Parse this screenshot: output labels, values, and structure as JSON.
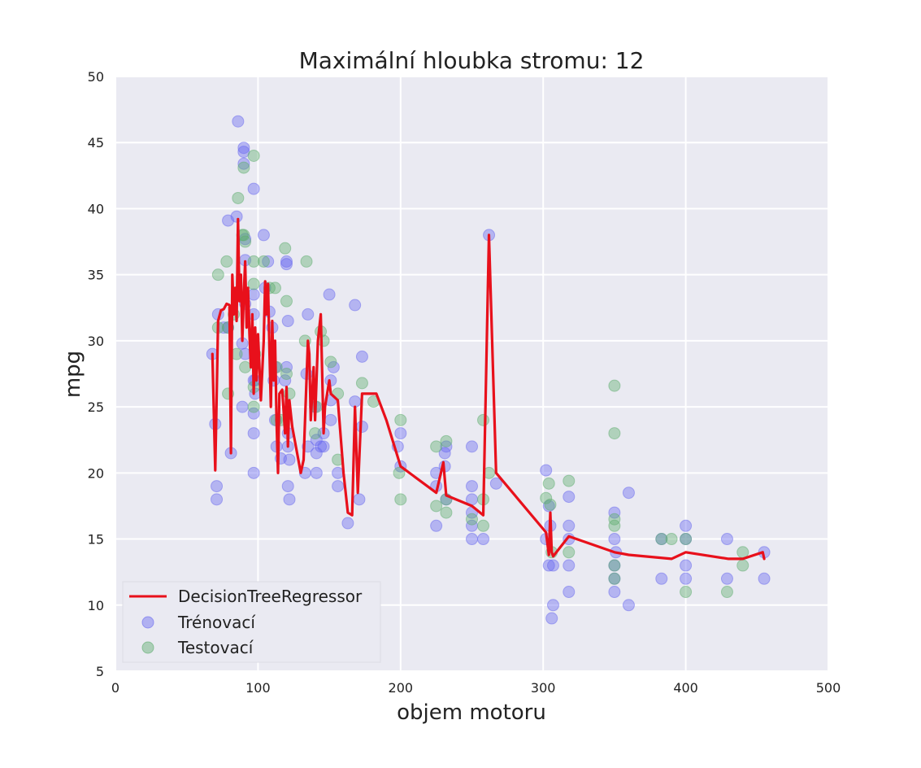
{
  "chart_data": {
    "type": "scatter",
    "title": "Maximální hloubka stromu: 12",
    "xlabel": "objem motoru",
    "ylabel": "mpg",
    "xlim": [
      0,
      500
    ],
    "ylim": [
      5,
      50
    ],
    "xticks": [
      0,
      100,
      200,
      300,
      400,
      500
    ],
    "yticks": [
      5,
      10,
      15,
      20,
      25,
      30,
      35,
      40,
      45,
      50
    ],
    "grid": true,
    "legend_position": "lower-left",
    "colors": {
      "background": "#eaeaf2",
      "grid": "#ffffff",
      "train": "#6a6af0",
      "test": "#5fae6f",
      "line": "#e8101b"
    },
    "series": [
      {
        "name": "DecisionTreeRegressor",
        "type": "line",
        "points": [
          [
            68,
            29
          ],
          [
            70,
            20.2
          ],
          [
            72,
            31.5
          ],
          [
            74,
            32.3
          ],
          [
            76,
            32.4
          ],
          [
            78,
            32.8
          ],
          [
            80,
            32.7
          ],
          [
            81,
            21.5
          ],
          [
            82,
            35
          ],
          [
            83,
            32
          ],
          [
            84,
            34
          ],
          [
            85,
            31.5
          ],
          [
            86,
            39.2
          ],
          [
            87,
            33
          ],
          [
            88,
            35
          ],
          [
            89,
            30
          ],
          [
            90,
            33.5
          ],
          [
            91,
            36
          ],
          [
            92,
            31
          ],
          [
            93,
            34
          ],
          [
            94,
            30.5
          ],
          [
            95,
            28
          ],
          [
            96,
            32
          ],
          [
            97,
            26
          ],
          [
            98,
            31
          ],
          [
            99,
            27
          ],
          [
            100,
            30.5
          ],
          [
            101,
            28
          ],
          [
            102,
            25.5
          ],
          [
            104,
            30
          ],
          [
            105,
            34.5
          ],
          [
            106,
            32
          ],
          [
            107,
            34.3
          ],
          [
            108,
            29.5
          ],
          [
            109,
            25
          ],
          [
            110,
            31.5
          ],
          [
            111,
            27
          ],
          [
            112,
            30
          ],
          [
            113,
            24
          ],
          [
            114,
            20
          ],
          [
            115,
            26
          ],
          [
            117,
            26.3
          ],
          [
            119,
            23
          ],
          [
            120,
            26.5
          ],
          [
            121,
            22
          ],
          [
            122,
            25.5
          ],
          [
            124,
            23.5
          ],
          [
            130,
            20
          ],
          [
            132,
            21
          ],
          [
            135,
            30
          ],
          [
            136,
            29
          ],
          [
            137,
            24
          ],
          [
            139,
            28
          ],
          [
            140,
            24
          ],
          [
            142,
            30
          ],
          [
            144,
            32
          ],
          [
            146,
            23
          ],
          [
            147,
            25
          ],
          [
            150,
            27
          ],
          [
            151,
            26
          ],
          [
            156,
            25.5
          ],
          [
            160,
            20
          ],
          [
            163,
            17
          ],
          [
            166,
            16.8
          ],
          [
            168,
            25
          ],
          [
            170,
            18.5
          ],
          [
            173,
            26
          ],
          [
            180,
            26
          ],
          [
            183,
            26
          ],
          [
            190,
            24
          ],
          [
            200,
            20.5
          ],
          [
            225,
            18.5
          ],
          [
            230,
            20.8
          ],
          [
            232,
            18.3
          ],
          [
            250,
            17.5
          ],
          [
            258,
            16.8
          ],
          [
            262,
            38
          ],
          [
            267,
            20
          ],
          [
            302,
            15.5
          ],
          [
            304,
            13.8
          ],
          [
            305,
            17
          ],
          [
            306,
            14
          ],
          [
            307,
            13.7
          ],
          [
            318,
            15.2
          ],
          [
            350,
            14
          ],
          [
            360,
            13.8
          ],
          [
            390,
            13.5
          ],
          [
            400,
            14
          ],
          [
            430,
            13.5
          ],
          [
            440,
            13.5
          ],
          [
            454,
            14
          ],
          [
            455,
            13.5
          ]
        ]
      },
      {
        "name": "Trénovací",
        "type": "scatter",
        "points": [
          [
            68,
            29
          ],
          [
            70,
            23.7
          ],
          [
            71,
            19
          ],
          [
            71,
            18
          ],
          [
            72,
            32
          ],
          [
            76,
            31
          ],
          [
            79,
            31
          ],
          [
            79,
            39.1
          ],
          [
            81,
            21.5
          ],
          [
            85,
            39.4
          ],
          [
            86,
            46.6
          ],
          [
            89,
            25
          ],
          [
            89,
            29.8
          ],
          [
            90,
            44.3
          ],
          [
            90,
            44.6
          ],
          [
            90,
            43.4
          ],
          [
            91,
            36.1
          ],
          [
            91,
            37.7
          ],
          [
            91,
            32.8
          ],
          [
            91,
            29
          ],
          [
            97,
            41.5
          ],
          [
            97,
            33.5
          ],
          [
            97,
            32
          ],
          [
            97,
            27
          ],
          [
            98,
            27
          ],
          [
            98,
            26
          ],
          [
            97,
            20
          ],
          [
            97,
            23
          ],
          [
            97,
            24.5
          ],
          [
            104,
            38
          ],
          [
            105,
            34
          ],
          [
            107,
            36
          ],
          [
            108,
            32.2
          ],
          [
            110,
            31
          ],
          [
            111,
            27
          ],
          [
            112,
            28
          ],
          [
            112,
            24
          ],
          [
            113,
            22
          ],
          [
            116,
            21.1
          ],
          [
            119,
            27
          ],
          [
            120,
            36
          ],
          [
            120,
            35.8
          ],
          [
            121,
            31.5
          ],
          [
            120,
            28
          ],
          [
            121,
            23
          ],
          [
            121,
            22
          ],
          [
            121,
            19
          ],
          [
            122,
            18
          ],
          [
            122,
            21
          ],
          [
            133,
            20
          ],
          [
            135,
            32
          ],
          [
            134,
            27.5
          ],
          [
            135,
            22
          ],
          [
            140,
            25
          ],
          [
            141,
            22.5
          ],
          [
            141,
            21.5
          ],
          [
            141,
            20
          ],
          [
            144,
            22
          ],
          [
            146,
            23
          ],
          [
            146,
            22
          ],
          [
            150,
            33.5
          ],
          [
            151,
            27
          ],
          [
            151,
            25.5
          ],
          [
            151,
            24
          ],
          [
            153,
            28
          ],
          [
            156,
            20
          ],
          [
            156,
            19
          ],
          [
            163,
            16.2
          ],
          [
            168,
            25.4
          ],
          [
            168,
            32.7
          ],
          [
            171,
            18
          ],
          [
            173,
            28.8
          ],
          [
            173,
            23.5
          ],
          [
            198,
            22
          ],
          [
            200,
            23
          ],
          [
            200,
            20.5
          ],
          [
            225,
            16
          ],
          [
            225,
            20
          ],
          [
            225,
            19
          ],
          [
            231,
            21.5
          ],
          [
            231,
            20.5
          ],
          [
            232,
            22
          ],
          [
            232,
            18
          ],
          [
            250,
            22
          ],
          [
            250,
            19
          ],
          [
            250,
            18
          ],
          [
            250,
            17
          ],
          [
            250,
            15
          ],
          [
            250,
            16
          ],
          [
            258,
            15
          ],
          [
            262,
            38
          ],
          [
            267,
            19.2
          ],
          [
            302,
            20.2
          ],
          [
            302,
            15
          ],
          [
            304,
            17.5
          ],
          [
            304,
            13
          ],
          [
            305,
            16
          ],
          [
            306,
            9
          ],
          [
            307,
            10
          ],
          [
            307,
            13
          ],
          [
            318,
            18.2
          ],
          [
            318,
            16
          ],
          [
            318,
            15
          ],
          [
            318,
            13
          ],
          [
            318,
            11
          ],
          [
            350,
            17
          ],
          [
            350,
            15
          ],
          [
            350,
            13
          ],
          [
            350,
            12
          ],
          [
            350,
            11
          ],
          [
            351,
            14
          ],
          [
            360,
            18.5
          ],
          [
            360,
            10
          ],
          [
            383,
            15
          ],
          [
            383,
            12
          ],
          [
            400,
            16
          ],
          [
            400,
            15
          ],
          [
            400,
            13
          ],
          [
            400,
            12
          ],
          [
            429,
            15
          ],
          [
            429,
            12
          ],
          [
            455,
            14
          ],
          [
            455,
            12
          ]
        ]
      },
      {
        "name": "Testovací",
        "type": "scatter",
        "points": [
          [
            72,
            35
          ],
          [
            72,
            31
          ],
          [
            78,
            36
          ],
          [
            79,
            31
          ],
          [
            79,
            26
          ],
          [
            83,
            32
          ],
          [
            85,
            29
          ],
          [
            86,
            40.8
          ],
          [
            89,
            38
          ],
          [
            90,
            38
          ],
          [
            90,
            43.1
          ],
          [
            91,
            37.5
          ],
          [
            91,
            28
          ],
          [
            97,
            44
          ],
          [
            97,
            36
          ],
          [
            97,
            34.3
          ],
          [
            97,
            25
          ],
          [
            97,
            26.5
          ],
          [
            98,
            29
          ],
          [
            104,
            36
          ],
          [
            108,
            34
          ],
          [
            112,
            34
          ],
          [
            113,
            24
          ],
          [
            113,
            28
          ],
          [
            116,
            24
          ],
          [
            119,
            37
          ],
          [
            120,
            33
          ],
          [
            120,
            27.5
          ],
          [
            122,
            26
          ],
          [
            133,
            30
          ],
          [
            134,
            36
          ],
          [
            140,
            23
          ],
          [
            141,
            25
          ],
          [
            144,
            30.7
          ],
          [
            146,
            30
          ],
          [
            151,
            28.4
          ],
          [
            156,
            26
          ],
          [
            156,
            21
          ],
          [
            173,
            26.8
          ],
          [
            181,
            25.4
          ],
          [
            199,
            20
          ],
          [
            200,
            18
          ],
          [
            200,
            24
          ],
          [
            225,
            17.5
          ],
          [
            225,
            22
          ],
          [
            232,
            22.4
          ],
          [
            232,
            17
          ],
          [
            232,
            18
          ],
          [
            250,
            16.5
          ],
          [
            258,
            18
          ],
          [
            258,
            16
          ],
          [
            258,
            24
          ],
          [
            262,
            20
          ],
          [
            302,
            18.1
          ],
          [
            304,
            19.2
          ],
          [
            305,
            17.6
          ],
          [
            306,
            14
          ],
          [
            318,
            19.4
          ],
          [
            318,
            14
          ],
          [
            350,
            26.6
          ],
          [
            350,
            23
          ],
          [
            350,
            16.5
          ],
          [
            350,
            16
          ],
          [
            350,
            13
          ],
          [
            350,
            12
          ],
          [
            383,
            15
          ],
          [
            390,
            15
          ],
          [
            400,
            15
          ],
          [
            400,
            11
          ],
          [
            429,
            11
          ],
          [
            440,
            13
          ],
          [
            440,
            14
          ]
        ]
      }
    ]
  }
}
